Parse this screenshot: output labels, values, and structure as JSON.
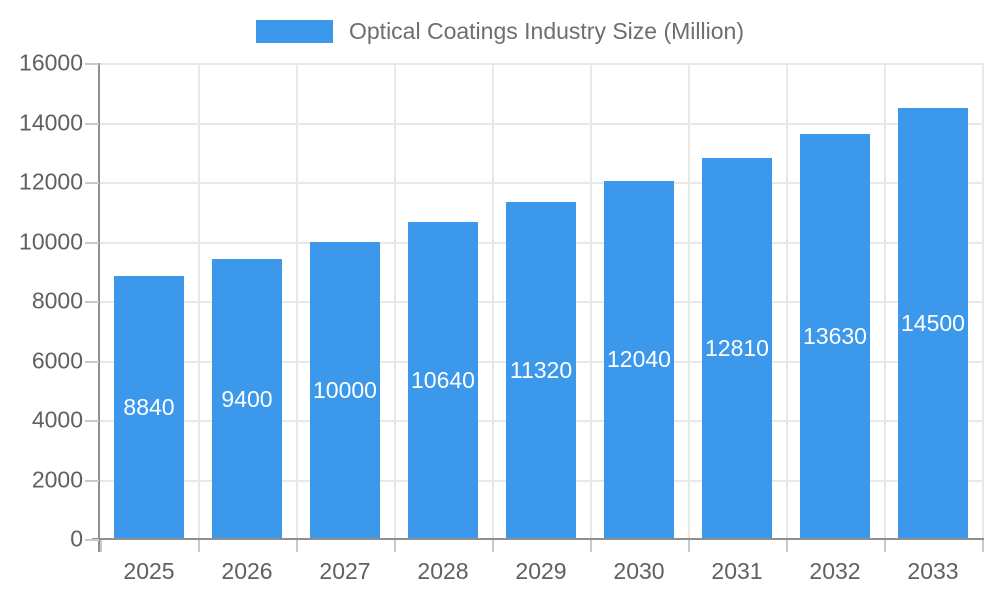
{
  "legend": {
    "label": "Optical Coatings Industry Size (Million)"
  },
  "chart_data": {
    "type": "bar",
    "title": "Optical Coatings Industry Size (Million)",
    "categories": [
      "2025",
      "2026",
      "2027",
      "2028",
      "2029",
      "2030",
      "2031",
      "2032",
      "2033"
    ],
    "values": [
      8840,
      9400,
      10000,
      10640,
      11320,
      12040,
      12810,
      13630,
      14500
    ],
    "series": [
      {
        "name": "Optical Coatings Industry Size (Million)",
        "values": [
          8840,
          9400,
          10000,
          10640,
          11320,
          12040,
          12810,
          13630,
          14500
        ]
      }
    ],
    "xlabel": "",
    "ylabel": "",
    "ylim": [
      0,
      16000
    ],
    "yticks": [
      0,
      2000,
      4000,
      6000,
      8000,
      10000,
      12000,
      14000,
      16000
    ],
    "grid": true,
    "legend_position": "top",
    "value_labels": "inside-center",
    "colors": {
      "bar": "#3B98EB",
      "bar_label": "#ffffff",
      "axis_text": "#606060",
      "legend_text": "#6e6e6e",
      "gridline": "#e8e8e8",
      "axis_line": "#8f8f8f",
      "tick": "#c9c9c9"
    }
  }
}
